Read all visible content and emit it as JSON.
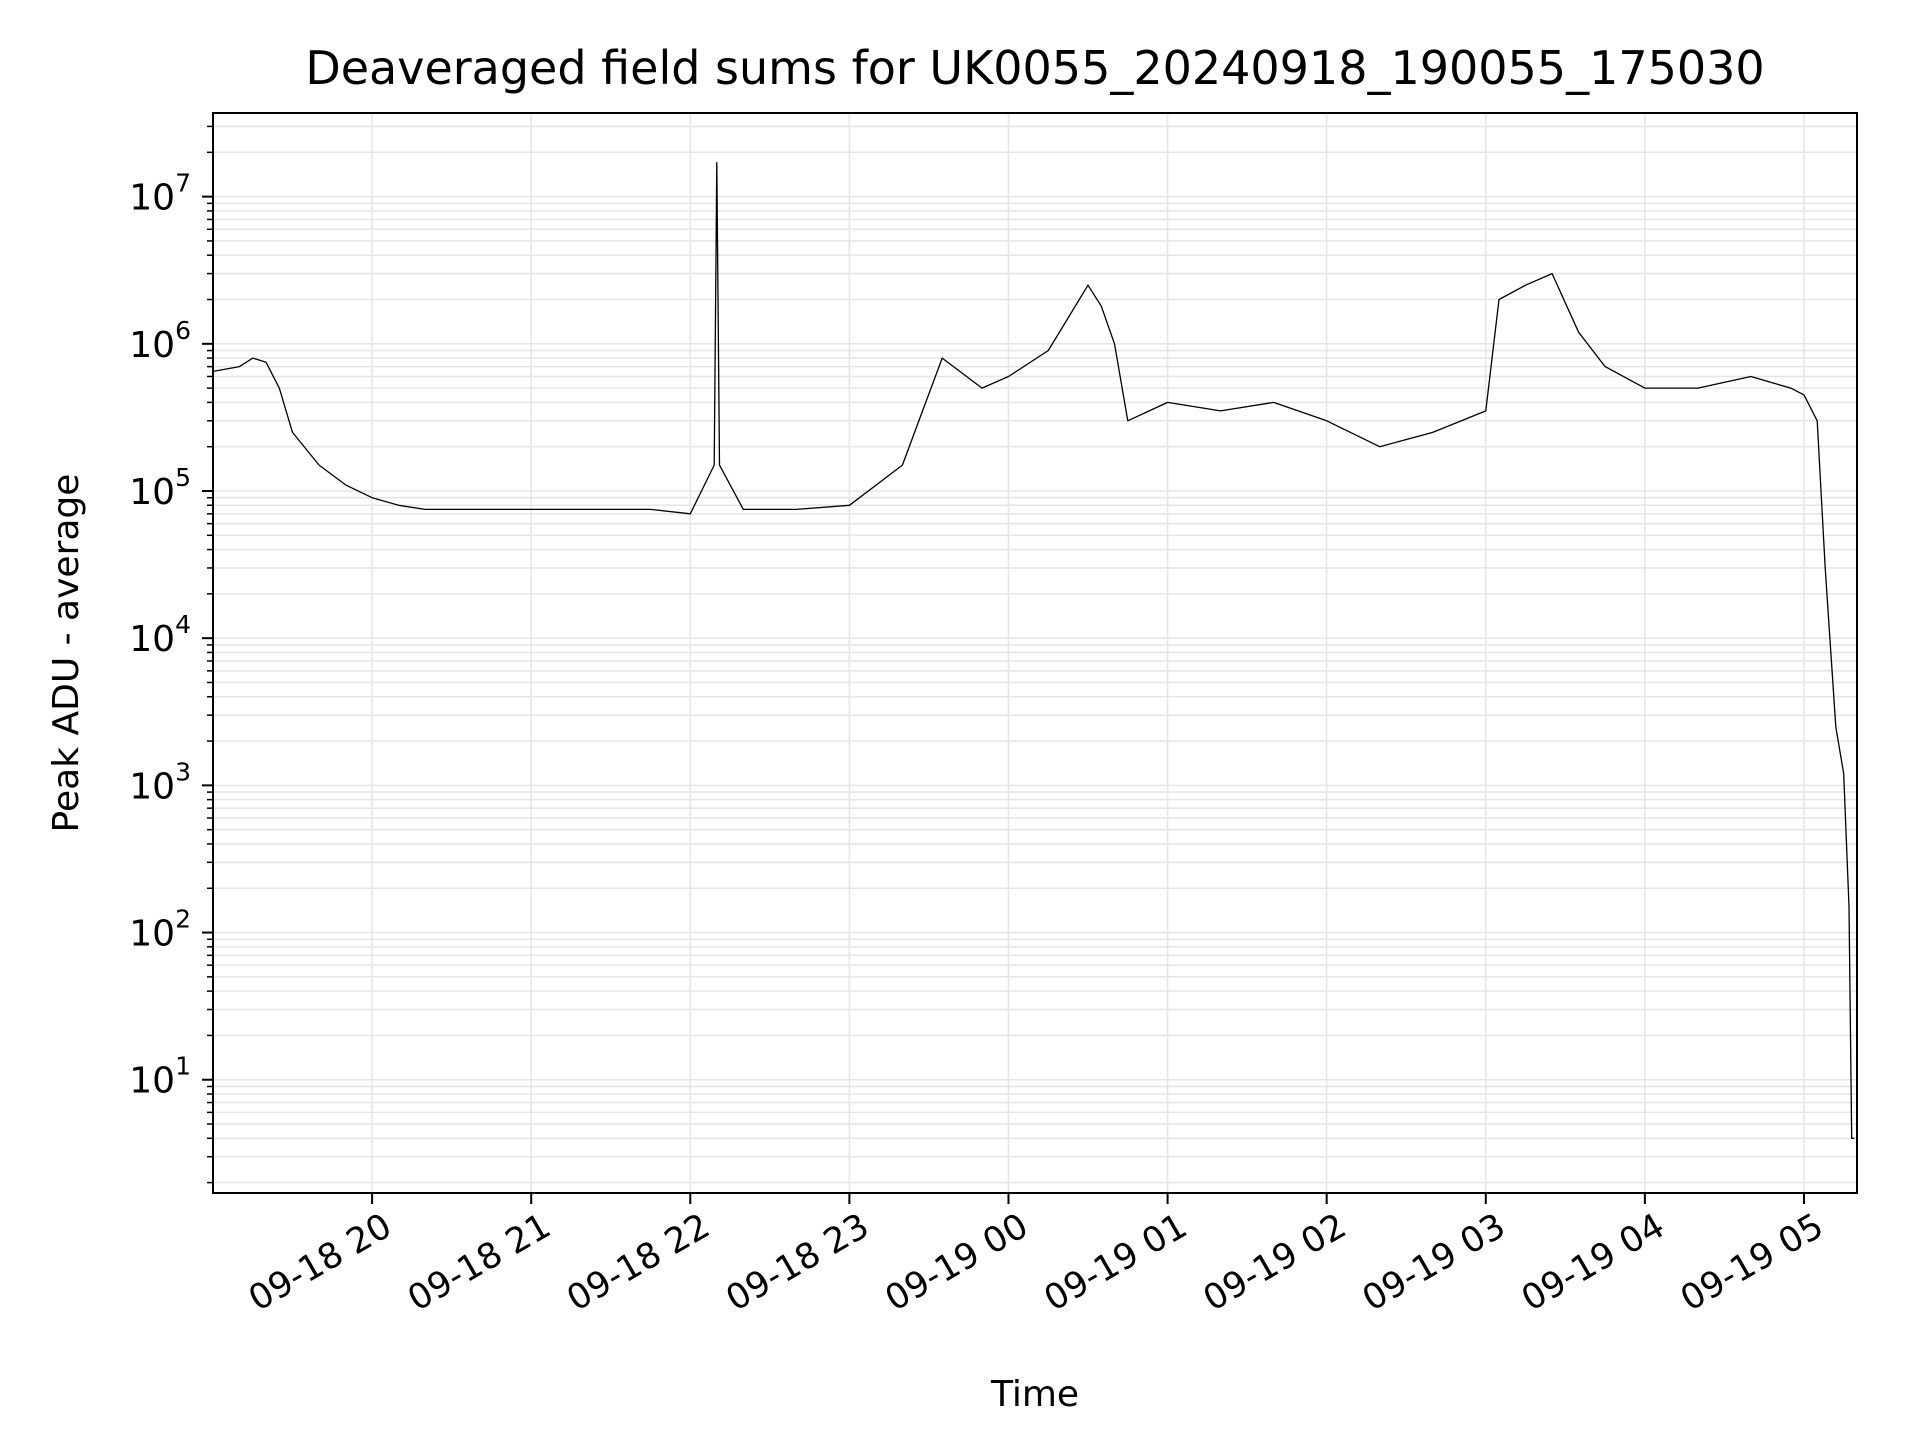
{
  "chart_data": {
    "type": "line",
    "title": "Deaveraged field sums for UK0055_20240918_190055_175030",
    "xlabel": "Time",
    "ylabel": "Peak ADU - average",
    "yscale": "log",
    "ylim": [
      1.7,
      37000000
    ],
    "xlim": [
      "2024-09-18 19:00",
      "2024-09-19 05:20"
    ],
    "grid": true,
    "line_color": "#000000",
    "grid_color": "#e6e6e6",
    "x_ticks": [
      {
        "t": "2024-09-18 20:00",
        "label": "09-18 20"
      },
      {
        "t": "2024-09-18 21:00",
        "label": "09-18 21"
      },
      {
        "t": "2024-09-18 22:00",
        "label": "09-18 22"
      },
      {
        "t": "2024-09-18 23:00",
        "label": "09-18 23"
      },
      {
        "t": "2024-09-19 00:00",
        "label": "09-19 00"
      },
      {
        "t": "2024-09-19 01:00",
        "label": "09-19 01"
      },
      {
        "t": "2024-09-19 02:00",
        "label": "09-19 02"
      },
      {
        "t": "2024-09-19 03:00",
        "label": "09-19 03"
      },
      {
        "t": "2024-09-19 04:00",
        "label": "09-19 04"
      },
      {
        "t": "2024-09-19 05:00",
        "label": "09-19 05"
      }
    ],
    "y_ticks": [
      {
        "value": 10,
        "base": "10",
        "exp": "1"
      },
      {
        "value": 100,
        "base": "10",
        "exp": "2"
      },
      {
        "value": 1000,
        "base": "10",
        "exp": "3"
      },
      {
        "value": 10000,
        "base": "10",
        "exp": "4"
      },
      {
        "value": 100000,
        "base": "10",
        "exp": "5"
      },
      {
        "value": 1000000,
        "base": "10",
        "exp": "6"
      },
      {
        "value": 10000000,
        "base": "10",
        "exp": "7"
      }
    ],
    "series": [
      {
        "x": [
          "2024-09-18 19:00",
          "2024-09-18 19:10",
          "2024-09-18 19:15",
          "2024-09-18 19:20",
          "2024-09-18 19:25",
          "2024-09-18 19:30",
          "2024-09-18 19:40",
          "2024-09-18 19:50",
          "2024-09-18 20:00",
          "2024-09-18 20:10",
          "2024-09-18 20:20",
          "2024-09-18 20:30",
          "2024-09-18 20:45",
          "2024-09-18 21:00",
          "2024-09-18 21:15",
          "2024-09-18 21:30",
          "2024-09-18 21:45",
          "2024-09-18 22:00",
          "2024-09-18 22:09",
          "2024-09-18 22:10",
          "2024-09-18 22:11",
          "2024-09-18 22:20",
          "2024-09-18 22:40",
          "2024-09-18 23:00",
          "2024-09-18 23:20",
          "2024-09-18 23:35",
          "2024-09-18 23:50",
          "2024-09-19 00:00",
          "2024-09-19 00:15",
          "2024-09-19 00:30",
          "2024-09-19 00:35",
          "2024-09-19 00:40",
          "2024-09-19 00:45",
          "2024-09-19 01:00",
          "2024-09-19 01:20",
          "2024-09-19 01:40",
          "2024-09-19 02:00",
          "2024-09-19 02:20",
          "2024-09-19 02:40",
          "2024-09-19 03:00",
          "2024-09-19 03:05",
          "2024-09-19 03:15",
          "2024-09-19 03:25",
          "2024-09-19 03:35",
          "2024-09-19 03:45",
          "2024-09-19 04:00",
          "2024-09-19 04:20",
          "2024-09-19 04:40",
          "2024-09-19 04:55",
          "2024-09-19 05:00",
          "2024-09-19 05:05",
          "2024-09-19 05:08",
          "2024-09-19 05:12",
          "2024-09-19 05:15",
          "2024-09-19 05:17",
          "2024-09-19 05:18",
          "2024-09-19 05:19"
        ],
        "y": [
          650000,
          700000,
          800000,
          750000,
          500000,
          250000,
          150000,
          110000,
          90000,
          80000,
          75000,
          75000,
          75000,
          75000,
          75000,
          75000,
          75000,
          70000,
          150000,
          17000000,
          150000,
          75000,
          75000,
          80000,
          150000,
          800000,
          500000,
          600000,
          900000,
          2500000,
          1800000,
          1000000,
          300000,
          400000,
          350000,
          400000,
          300000,
          200000,
          250000,
          350000,
          2000000,
          2500000,
          3000000,
          1200000,
          700000,
          500000,
          500000,
          600000,
          500000,
          450000,
          300000,
          30000,
          2500,
          1200,
          150,
          4,
          4
        ]
      }
    ]
  }
}
